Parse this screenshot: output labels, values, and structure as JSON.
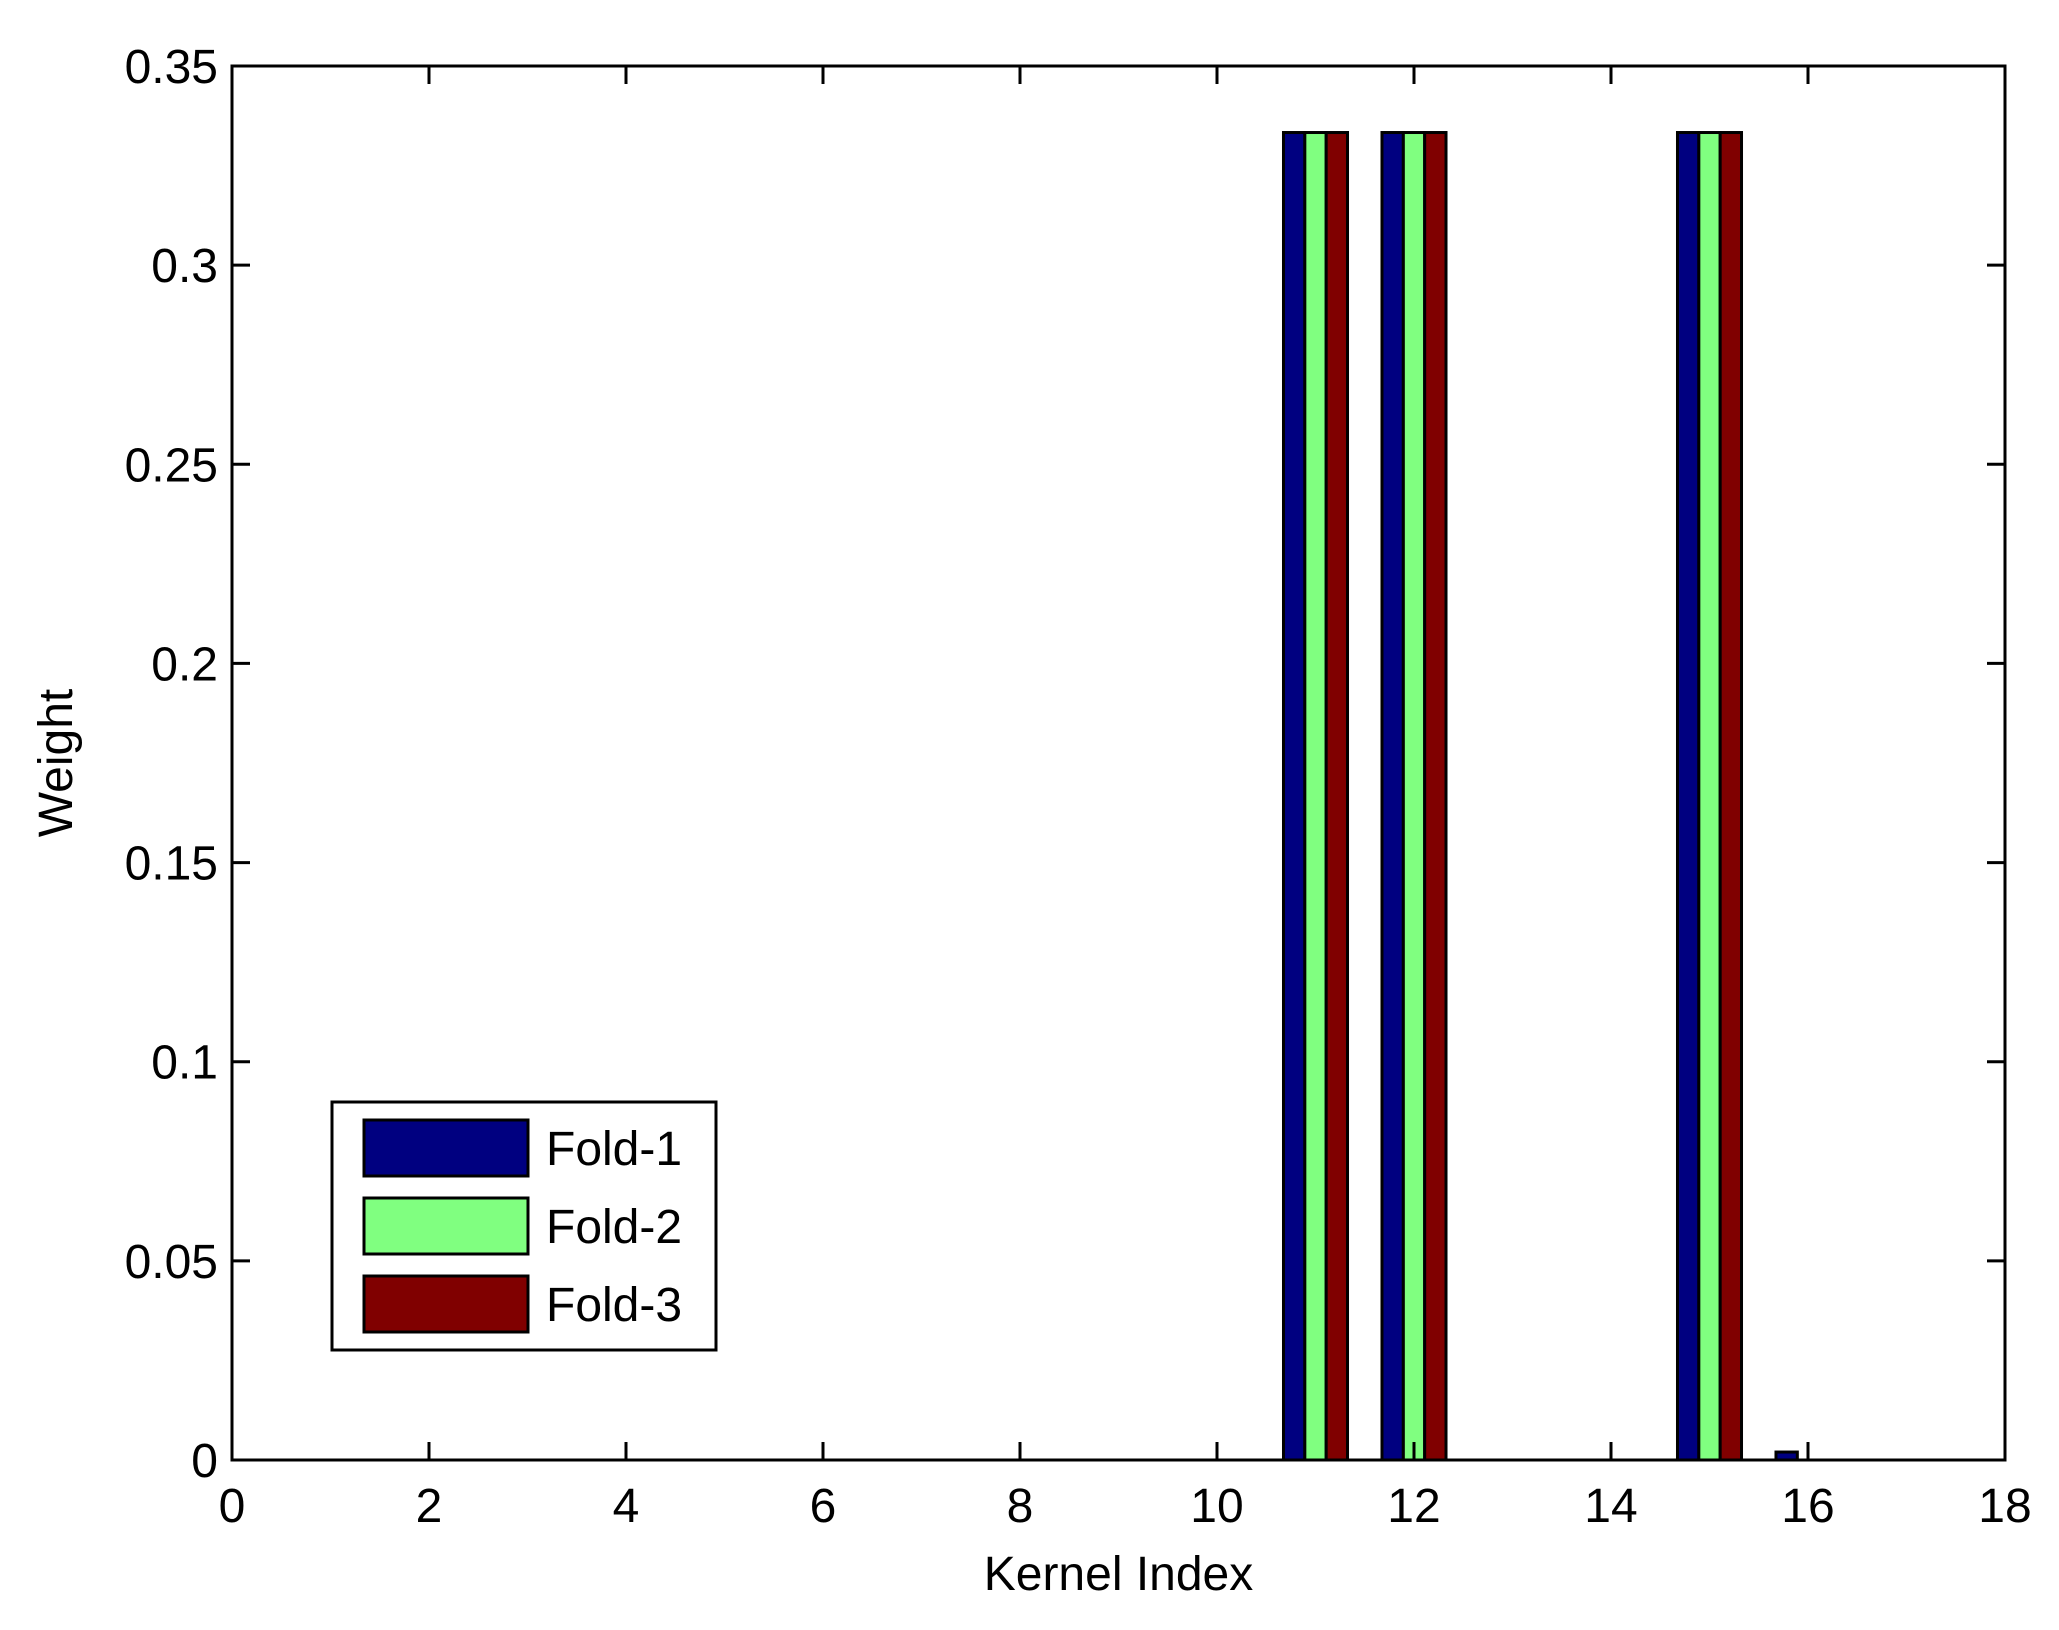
{
  "chart_data": {
    "type": "bar",
    "xlabel": "Kernel Index",
    "ylabel": "Weight",
    "xlim": [
      0,
      18
    ],
    "ylim": [
      0,
      0.35
    ],
    "xticks": [
      "0",
      "2",
      "4",
      "6",
      "8",
      "10",
      "12",
      "14",
      "16",
      "18"
    ],
    "yticks": [
      "0",
      "0.05",
      "0.1",
      "0.15",
      "0.2",
      "0.25",
      "0.3",
      "0.35"
    ],
    "categories": [
      1,
      2,
      3,
      4,
      5,
      6,
      7,
      8,
      9,
      10,
      11,
      12,
      13,
      14,
      15,
      16,
      17
    ],
    "series": [
      {
        "name": "Fold-1",
        "color": "#000080",
        "values": [
          0,
          0,
          0,
          0,
          0,
          0,
          0,
          0,
          0,
          0,
          0.3333,
          0.3333,
          0,
          0,
          0.3333,
          0.002,
          0
        ]
      },
      {
        "name": "Fold-2",
        "color": "#80ff80",
        "values": [
          0,
          0,
          0,
          0,
          0,
          0,
          0,
          0,
          0,
          0,
          0.3333,
          0.3333,
          0,
          0,
          0.3333,
          0,
          0
        ]
      },
      {
        "name": "Fold-3",
        "color": "#800000",
        "values": [
          0,
          0,
          0,
          0,
          0,
          0,
          0,
          0,
          0,
          0,
          0.3333,
          0.3333,
          0,
          0,
          0.3333,
          0,
          0
        ]
      }
    ],
    "legend": {
      "placement": "lower-left"
    },
    "grid": false
  }
}
